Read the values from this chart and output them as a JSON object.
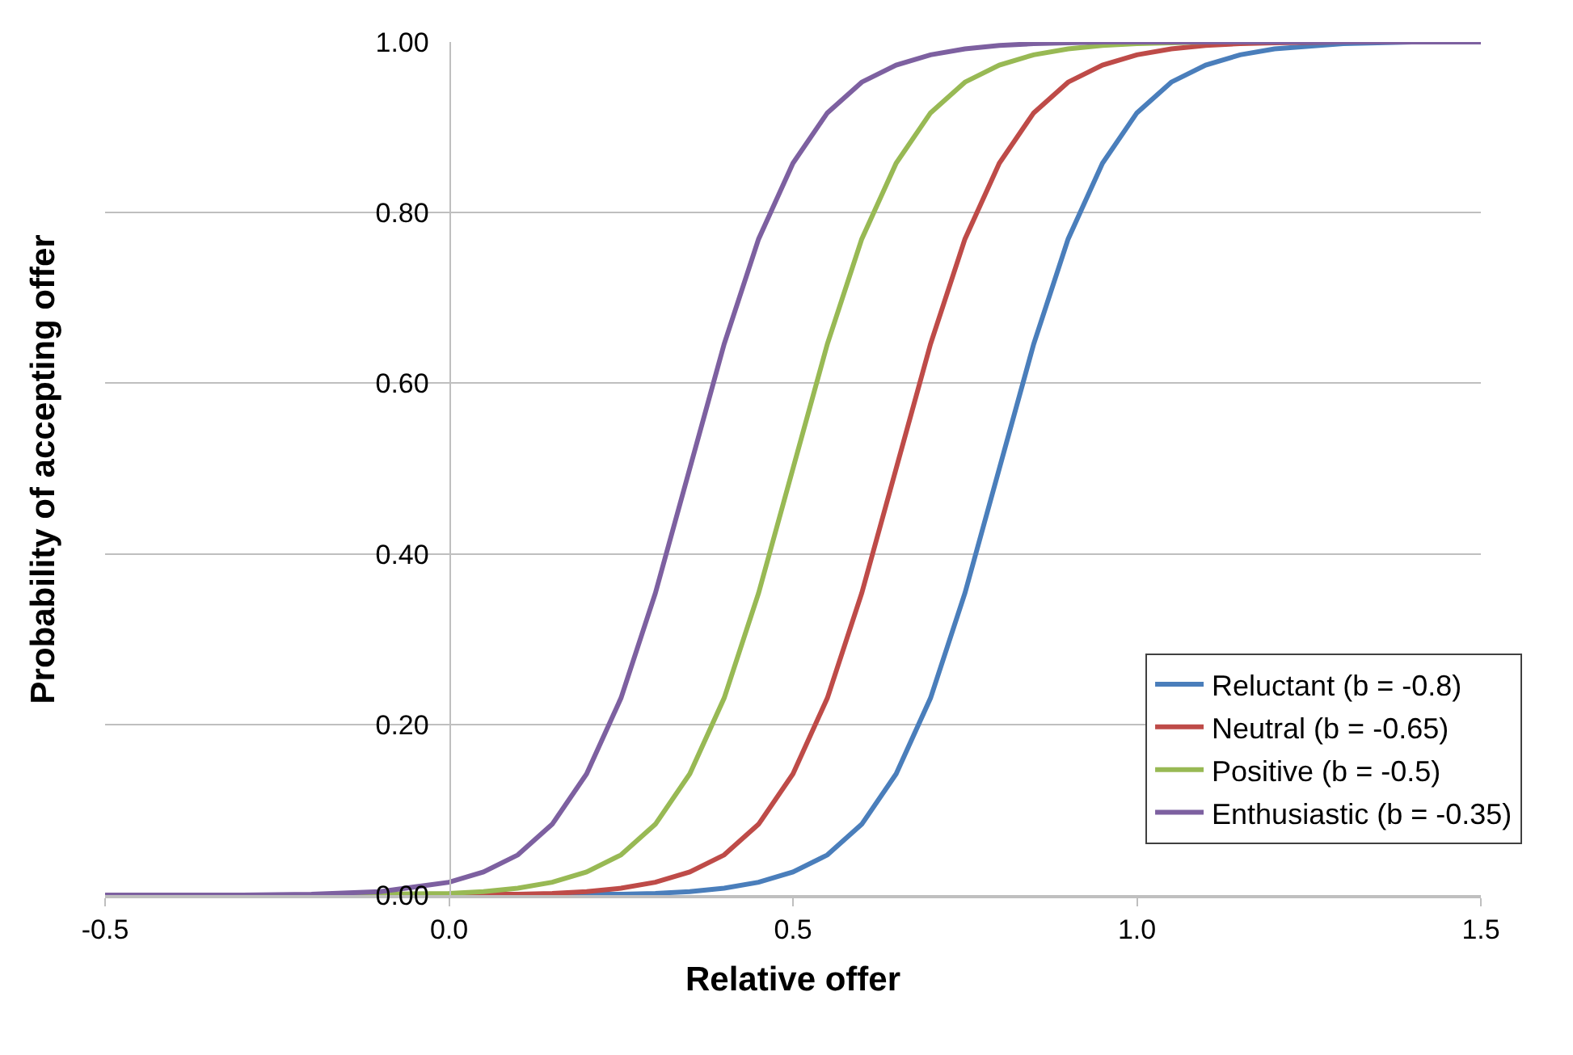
{
  "chart_data": {
    "type": "line",
    "xlabel": "Relative offer",
    "ylabel": "Probability of accepting offer",
    "x": [
      -0.5,
      -0.3,
      -0.2,
      -0.1,
      0,
      0.05,
      0.1,
      0.15,
      0.2,
      0.25,
      0.3,
      0.35,
      0.4,
      0.45,
      0.5,
      0.55,
      0.6,
      0.65,
      0.7,
      0.75,
      0.8,
      0.85,
      0.9,
      0.95,
      1.0,
      1.05,
      1.1,
      1.15,
      1.2,
      1.3,
      1.4,
      1.5
    ],
    "series": [
      {
        "name": "Reluctant (b = -0.8)",
        "color": "#4a7ebb",
        "values": [
          0,
          0,
          0,
          0,
          0,
          0,
          0,
          0,
          0.001,
          0.001,
          0.002,
          0.004,
          0.008,
          0.015,
          0.027,
          0.047,
          0.083,
          0.142,
          0.231,
          0.354,
          0.5,
          0.646,
          0.769,
          0.858,
          0.917,
          0.953,
          0.973,
          0.985,
          0.992,
          0.998,
          1,
          1
        ]
      },
      {
        "name": "Neutral (b = -0.65)",
        "color": "#be4b48",
        "values": [
          null,
          null,
          null,
          null,
          0,
          0.001,
          0.001,
          0.002,
          0.004,
          0.008,
          0.015,
          0.027,
          0.047,
          0.083,
          0.142,
          0.231,
          0.354,
          0.5,
          0.646,
          0.769,
          0.858,
          0.917,
          0.953,
          0.973,
          0.985,
          0.992,
          0.996,
          0.998,
          0.999,
          1,
          null,
          null
        ]
      },
      {
        "name": "Positive (b = -0.5)",
        "color": "#98b954",
        "values": [
          null,
          null,
          0,
          0.001,
          0.002,
          0.004,
          0.008,
          0.015,
          0.027,
          0.047,
          0.083,
          0.142,
          0.231,
          0.354,
          0.5,
          0.646,
          0.769,
          0.858,
          0.917,
          0.953,
          0.973,
          0.985,
          0.992,
          0.996,
          0.998,
          0.999,
          1,
          1,
          null,
          null,
          null,
          null
        ]
      },
      {
        "name": "Enthusiastic (b = -0.35)",
        "color": "#7d60a0",
        "values": [
          0,
          0,
          0.001,
          0.004,
          0.015,
          0.027,
          0.047,
          0.083,
          0.142,
          0.231,
          0.354,
          0.5,
          0.646,
          0.769,
          0.858,
          0.917,
          0.953,
          0.973,
          0.985,
          0.992,
          0.996,
          0.998,
          0.999,
          1,
          1,
          1,
          1,
          1,
          1,
          1,
          1,
          1
        ]
      }
    ],
    "xlim": [
      -0.5,
      1.5
    ],
    "xticks": [
      {
        "value": -0.5,
        "label": "-0.5"
      },
      {
        "value": 0,
        "label": "0.0"
      },
      {
        "value": 0.5,
        "label": "0.5"
      },
      {
        "value": 1,
        "label": "1.0"
      },
      {
        "value": 1.5,
        "label": "1.5"
      }
    ],
    "ylim": [
      0,
      1
    ],
    "yticks": [
      {
        "value": 0,
        "label": "0.00"
      },
      {
        "value": 0.2,
        "label": "0.20"
      },
      {
        "value": 0.4,
        "label": "0.40"
      },
      {
        "value": 0.6,
        "label": "0.60"
      },
      {
        "value": 0.8,
        "label": "0.80"
      },
      {
        "value": 1,
        "label": "1.00"
      }
    ],
    "grid": "y",
    "legend": "bottom right",
    "marker": "none",
    "line_style": "solid"
  }
}
